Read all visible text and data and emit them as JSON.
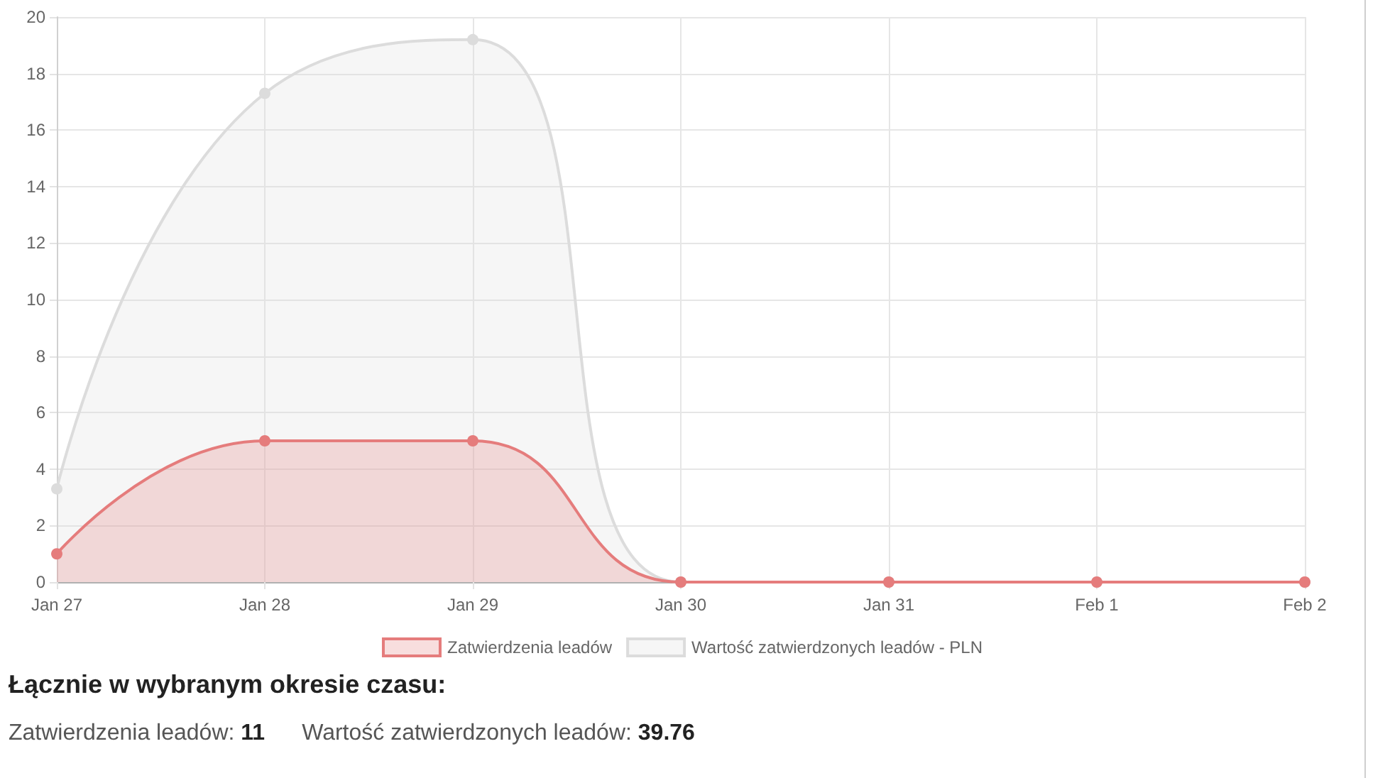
{
  "chart_data": {
    "type": "area",
    "categories": [
      "Jan 27",
      "Jan 28",
      "Jan 29",
      "Jan 30",
      "Jan 31",
      "Feb 1",
      "Feb 2"
    ],
    "series": [
      {
        "name": "Zatwierdzenia leadów",
        "color": "#e57c7c",
        "values": [
          1,
          5,
          5,
          0,
          0,
          0,
          0
        ]
      },
      {
        "name": "Wartość zatwierdzonych leadów - PLN",
        "color": "#dcdcdc",
        "values": [
          3.3,
          17.3,
          19.2,
          0,
          0,
          0,
          0
        ]
      }
    ],
    "ylim": [
      0,
      20
    ],
    "yticks": [
      0,
      2,
      4,
      6,
      8,
      10,
      12,
      14,
      16,
      18,
      20
    ],
    "grid": true,
    "legend": "bottom",
    "marker": "circle",
    "annotations": [
      "Łącznie w wybranym okresie czasu:",
      "Zatwierdzenia leadów: 11",
      "Wartość zatwierdzonych leadów: 39.76"
    ]
  }
}
